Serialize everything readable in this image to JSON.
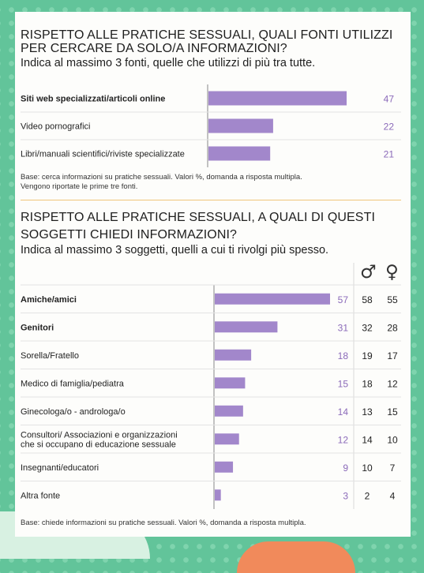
{
  "section1": {
    "title_line1": "RISPETTO ALLE PRATICHE SESSUALI, QUALI FONTI UTILIZZI",
    "title_line2": "PER CERCARE DA SOLO/A INFORMAZIONI?",
    "subtitle": "Indica al massimo 3 fonti, quelle che utilizzi di più tra tutte.",
    "note_line1": "Base: cerca informazioni su pratiche sessuali. Valori %, domanda a risposta multipla.",
    "note_line2": "Vengono riportate le prime tre fonti."
  },
  "section2": {
    "title_line1": "RISPETTO ALLE PRATICHE SESSUALI, A QUALI DI QUESTI",
    "title_line2": "SOGGETTI CHIEDI INFORMAZIONI?",
    "subtitle": "Indica al massimo 3 soggetti, quelli a cui ti rivolgi più spesso.",
    "male_symbol": "♂",
    "female_symbol": "♀",
    "note": "Base: chiede informazioni su pratiche sessuali. Valori %, domanda a risposta multipla."
  },
  "colors": {
    "bar": "#a287cb",
    "value_text": "#8b6ab9",
    "background": "#62c49a",
    "divider": "#f0c67a"
  },
  "chart_data": [
    {
      "type": "bar",
      "orientation": "horizontal",
      "categories": [
        "Siti web specializzati/articoli online",
        "Video pornografici",
        "Libri/manuali scientifici/riviste specializzate"
      ],
      "label_bold": [
        true,
        false,
        false
      ],
      "values": [
        47,
        22,
        21
      ],
      "unit": "%"
    },
    {
      "type": "bar",
      "orientation": "horizontal",
      "categories": [
        [
          "Amiche/amici"
        ],
        [
          "Genitori"
        ],
        [
          "Sorella/Fratello"
        ],
        [
          "Medico di famiglia/pediatra"
        ],
        [
          "Ginecologa/o - androloga/o"
        ],
        [
          "Consultori/ Associazioni e organizzazioni",
          "che si occupano di educazione sessuale"
        ],
        [
          "Insegnanti/educatori"
        ],
        [
          "Altra fonte"
        ]
      ],
      "label_bold": [
        true,
        true,
        false,
        false,
        false,
        false,
        false,
        false
      ],
      "values": [
        57,
        31,
        18,
        15,
        14,
        12,
        9,
        3
      ],
      "male_values": [
        58,
        32,
        19,
        18,
        13,
        14,
        10,
        2
      ],
      "female_values": [
        55,
        28,
        17,
        12,
        15,
        10,
        7,
        4
      ],
      "unit": "%"
    }
  ]
}
